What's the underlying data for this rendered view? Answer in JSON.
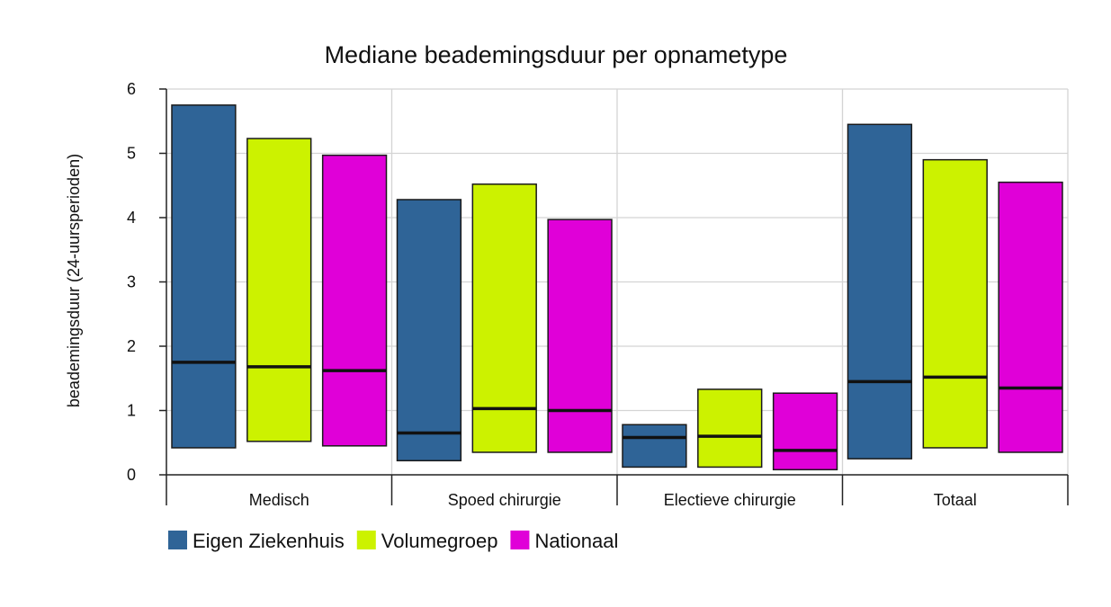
{
  "chart_data": {
    "type": "bar",
    "title": "Mediane beademingsduur per opnametype",
    "ylabel": "beademingsduur (24-uursperioden)",
    "xlabel": "",
    "ylim": [
      0,
      6
    ],
    "yticks": [
      0,
      1,
      2,
      3,
      4,
      5,
      6
    ],
    "grid": true,
    "legend_position": "bottom-left",
    "categories": [
      "Medisch",
      "Spoed chirurgie",
      "Electieve chirurgie",
      "Totaal"
    ],
    "series": [
      {
        "name": "Eigen Ziekenhuis",
        "color": "#2F6497",
        "low": [
          0.42,
          0.22,
          0.12,
          0.25
        ],
        "median": [
          1.75,
          0.65,
          0.58,
          1.45
        ],
        "high": [
          5.75,
          4.28,
          0.78,
          5.45
        ]
      },
      {
        "name": "Volumegroep",
        "color": "#CCF200",
        "low": [
          0.52,
          0.35,
          0.12,
          0.42
        ],
        "median": [
          1.68,
          1.03,
          0.6,
          1.52
        ],
        "high": [
          5.23,
          4.52,
          1.33,
          4.9
        ]
      },
      {
        "name": "Nationaal",
        "color": "#E000D8",
        "low": [
          0.45,
          0.35,
          0.08,
          0.35
        ],
        "median": [
          1.62,
          1.0,
          0.38,
          1.35
        ],
        "high": [
          4.97,
          3.97,
          1.27,
          4.55
        ]
      }
    ]
  }
}
